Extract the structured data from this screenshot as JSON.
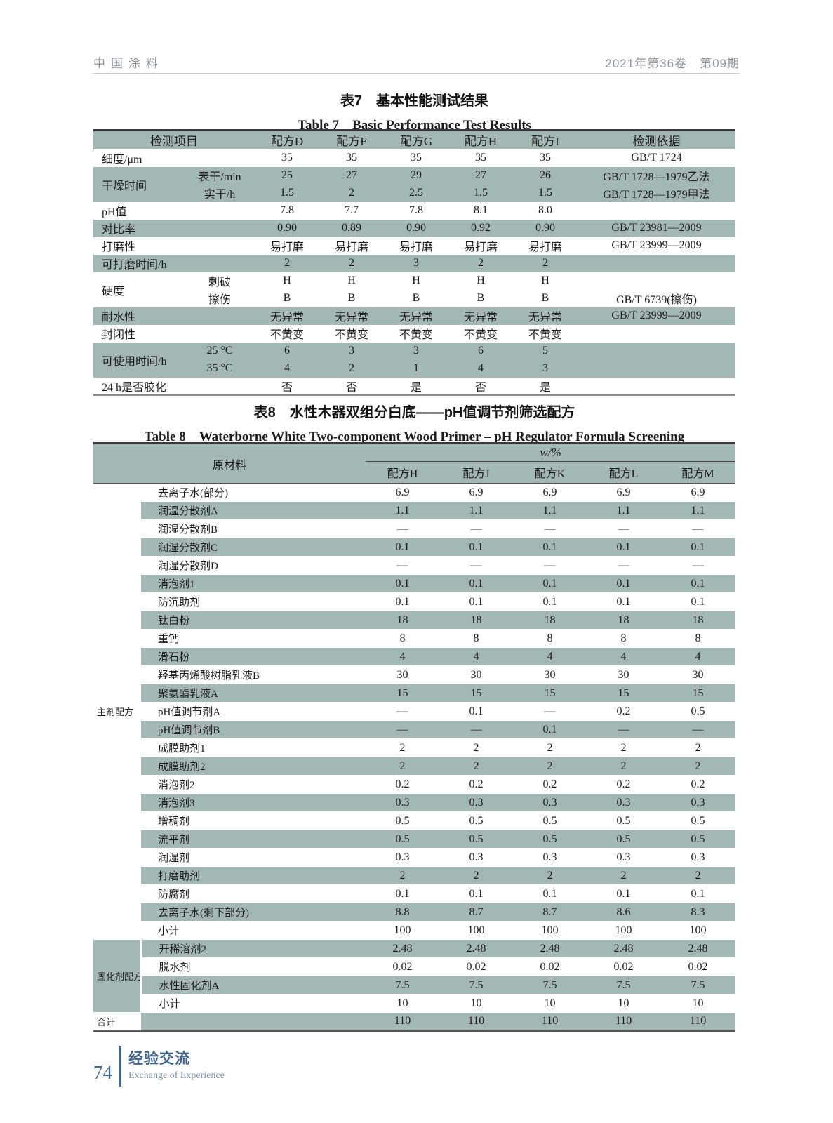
{
  "colors": {
    "table_band": "#a3b7b4",
    "footer_accent": "#41658c",
    "running_head_gray": "#8d959b"
  },
  "page_header": {
    "journal_name": "中国涂料",
    "issue_info": "2021年第36卷　第09期"
  },
  "table7": {
    "title_zh": "表7　基本性能测试结果",
    "title_en": "Table 7　Basic Performance Test Results",
    "columns": [
      "检测项目",
      "配方D",
      "配方F",
      "配方G",
      "配方H",
      "配方I",
      "检测依据"
    ],
    "rows": [
      {
        "label": "细度/μm",
        "shaded": false,
        "subs": [
          {
            "sub": null,
            "vals": [
              "35",
              "35",
              "35",
              "35",
              "35"
            ],
            "basis": "GB/T 1724"
          }
        ]
      },
      {
        "label": "干燥时间",
        "shaded": true,
        "subs": [
          {
            "sub": "表干/min",
            "vals": [
              "25",
              "27",
              "29",
              "27",
              "26"
            ],
            "basis": "GB/T 1728—1979乙法"
          },
          {
            "sub": "实干/h",
            "vals": [
              "1.5",
              "2",
              "2.5",
              "1.5",
              "1.5"
            ],
            "basis": "GB/T 1728—1979甲法"
          }
        ]
      },
      {
        "label": "pH值",
        "shaded": false,
        "subs": [
          {
            "sub": null,
            "vals": [
              "7.8",
              "7.7",
              "7.8",
              "8.1",
              "8.0"
            ],
            "basis": ""
          }
        ]
      },
      {
        "label": "对比率",
        "shaded": true,
        "subs": [
          {
            "sub": null,
            "vals": [
              "0.90",
              "0.89",
              "0.90",
              "0.92",
              "0.90"
            ],
            "basis": "GB/T 23981—2009"
          }
        ]
      },
      {
        "label": "打磨性",
        "shaded": false,
        "subs": [
          {
            "sub": null,
            "vals": [
              "易打磨",
              "易打磨",
              "易打磨",
              "易打磨",
              "易打磨"
            ],
            "basis": "GB/T 23999—2009"
          }
        ]
      },
      {
        "label": "可打磨时间/h",
        "shaded": true,
        "subs": [
          {
            "sub": null,
            "vals": [
              "2",
              "2",
              "3",
              "2",
              "2"
            ],
            "basis": ""
          }
        ]
      },
      {
        "label": "硬度",
        "shaded": false,
        "subs": [
          {
            "sub": "刺破",
            "vals": [
              "H",
              "H",
              "H",
              "H",
              "H"
            ],
            "basis": ""
          },
          {
            "sub": "擦伤",
            "vals": [
              "B",
              "B",
              "B",
              "B",
              "B"
            ],
            "basis": "GB/T 6739(擦伤)"
          }
        ]
      },
      {
        "label": "耐水性",
        "shaded": true,
        "subs": [
          {
            "sub": null,
            "vals": [
              "无异常",
              "无异常",
              "无异常",
              "无异常",
              "无异常"
            ],
            "basis": "GB/T 23999—2009"
          }
        ]
      },
      {
        "label": "封闭性",
        "shaded": false,
        "subs": [
          {
            "sub": null,
            "vals": [
              "不黄变",
              "不黄变",
              "不黄变",
              "不黄变",
              "不黄变"
            ],
            "basis": ""
          }
        ]
      },
      {
        "label": "可使用时间/h",
        "shaded": true,
        "subs": [
          {
            "sub": "25 °C",
            "vals": [
              "6",
              "3",
              "3",
              "6",
              "5"
            ],
            "basis": ""
          },
          {
            "sub": "35 °C",
            "vals": [
              "4",
              "2",
              "1",
              "4",
              "3"
            ],
            "basis": ""
          }
        ]
      },
      {
        "label": "24 h是否胶化",
        "shaded": false,
        "subs": [
          {
            "sub": null,
            "vals": [
              "否",
              "否",
              "是",
              "否",
              "是"
            ],
            "basis": ""
          }
        ]
      }
    ]
  },
  "table8": {
    "title_zh": "表8　水性木器双组分白底——pH值调节剂筛选配方",
    "title_en": "Table 8　Waterborne White Two-component Wood Primer – pH Regulator Formula Screening",
    "header": {
      "material": "原材料",
      "wpct": "w/%",
      "formulas": [
        "配方H",
        "配方J",
        "配方K",
        "配方L",
        "配方M"
      ]
    },
    "groups": [
      {
        "label": "主剂配方",
        "shaded_cell": false,
        "rows": [
          {
            "name": "去离子水(部分)",
            "vals": [
              "6.9",
              "6.9",
              "6.9",
              "6.9",
              "6.9"
            ],
            "shaded": false
          },
          {
            "name": "润湿分散剂A",
            "vals": [
              "1.1",
              "1.1",
              "1.1",
              "1.1",
              "1.1"
            ],
            "shaded": true
          },
          {
            "name": "润湿分散剂B",
            "vals": [
              "—",
              "—",
              "—",
              "—",
              "—"
            ],
            "shaded": false
          },
          {
            "name": "润湿分散剂C",
            "vals": [
              "0.1",
              "0.1",
              "0.1",
              "0.1",
              "0.1"
            ],
            "shaded": true
          },
          {
            "name": "润湿分散剂D",
            "vals": [
              "—",
              "—",
              "—",
              "—",
              "—"
            ],
            "shaded": false
          },
          {
            "name": "消泡剂1",
            "vals": [
              "0.1",
              "0.1",
              "0.1",
              "0.1",
              "0.1"
            ],
            "shaded": true
          },
          {
            "name": "防沉助剂",
            "vals": [
              "0.1",
              "0.1",
              "0.1",
              "0.1",
              "0.1"
            ],
            "shaded": false
          },
          {
            "name": "钛白粉",
            "vals": [
              "18",
              "18",
              "18",
              "18",
              "18"
            ],
            "shaded": true
          },
          {
            "name": "重钙",
            "vals": [
              "8",
              "8",
              "8",
              "8",
              "8"
            ],
            "shaded": false
          },
          {
            "name": "滑石粉",
            "vals": [
              "4",
              "4",
              "4",
              "4",
              "4"
            ],
            "shaded": true
          },
          {
            "name": "羟基丙烯酸树脂乳液B",
            "vals": [
              "30",
              "30",
              "30",
              "30",
              "30"
            ],
            "shaded": false
          },
          {
            "name": "聚氨酯乳液A",
            "vals": [
              "15",
              "15",
              "15",
              "15",
              "15"
            ],
            "shaded": true
          },
          {
            "name": "pH值调节剂A",
            "vals": [
              "—",
              "0.1",
              "—",
              "0.2",
              "0.5"
            ],
            "shaded": false
          },
          {
            "name": "pH值调节剂B",
            "vals": [
              "—",
              "—",
              "0.1",
              "—",
              "—"
            ],
            "shaded": true
          },
          {
            "name": "成膜助剂1",
            "vals": [
              "2",
              "2",
              "2",
              "2",
              "2"
            ],
            "shaded": false
          },
          {
            "name": "成膜助剂2",
            "vals": [
              "2",
              "2",
              "2",
              "2",
              "2"
            ],
            "shaded": true
          },
          {
            "name": "消泡剂2",
            "vals": [
              "0.2",
              "0.2",
              "0.2",
              "0.2",
              "0.2"
            ],
            "shaded": false
          },
          {
            "name": "消泡剂3",
            "vals": [
              "0.3",
              "0.3",
              "0.3",
              "0.3",
              "0.3"
            ],
            "shaded": true
          },
          {
            "name": "增稠剂",
            "vals": [
              "0.5",
              "0.5",
              "0.5",
              "0.5",
              "0.5"
            ],
            "shaded": false
          },
          {
            "name": "流平剂",
            "vals": [
              "0.5",
              "0.5",
              "0.5",
              "0.5",
              "0.5"
            ],
            "shaded": true
          },
          {
            "name": "润湿剂",
            "vals": [
              "0.3",
              "0.3",
              "0.3",
              "0.3",
              "0.3"
            ],
            "shaded": false
          },
          {
            "name": "打磨助剂",
            "vals": [
              "2",
              "2",
              "2",
              "2",
              "2"
            ],
            "shaded": true
          },
          {
            "name": "防腐剂",
            "vals": [
              "0.1",
              "0.1",
              "0.1",
              "0.1",
              "0.1"
            ],
            "shaded": false
          },
          {
            "name": "去离子水(剩下部分)",
            "vals": [
              "8.8",
              "8.7",
              "8.7",
              "8.6",
              "8.3"
            ],
            "shaded": true
          },
          {
            "name": "小计",
            "vals": [
              "100",
              "100",
              "100",
              "100",
              "100"
            ],
            "shaded": false
          }
        ]
      },
      {
        "label": "固化剂配方",
        "shaded_cell": true,
        "rows": [
          {
            "name": "开稀溶剂2",
            "vals": [
              "2.48",
              "2.48",
              "2.48",
              "2.48",
              "2.48"
            ],
            "shaded": true
          },
          {
            "name": "脱水剂",
            "vals": [
              "0.02",
              "0.02",
              "0.02",
              "0.02",
              "0.02"
            ],
            "shaded": false
          },
          {
            "name": "水性固化剂A",
            "vals": [
              "7.5",
              "7.5",
              "7.5",
              "7.5",
              "7.5"
            ],
            "shaded": true
          },
          {
            "name": "小计",
            "vals": [
              "10",
              "10",
              "10",
              "10",
              "10"
            ],
            "shaded": false
          }
        ]
      },
      {
        "label": "合计",
        "shaded_cell": false,
        "rows": [
          {
            "name": "",
            "vals": [
              "110",
              "110",
              "110",
              "110",
              "110"
            ],
            "shaded": true
          }
        ]
      }
    ]
  },
  "footer": {
    "page_number": "74",
    "section_zh": "经验交流",
    "section_en": "Exchange of Experience"
  }
}
